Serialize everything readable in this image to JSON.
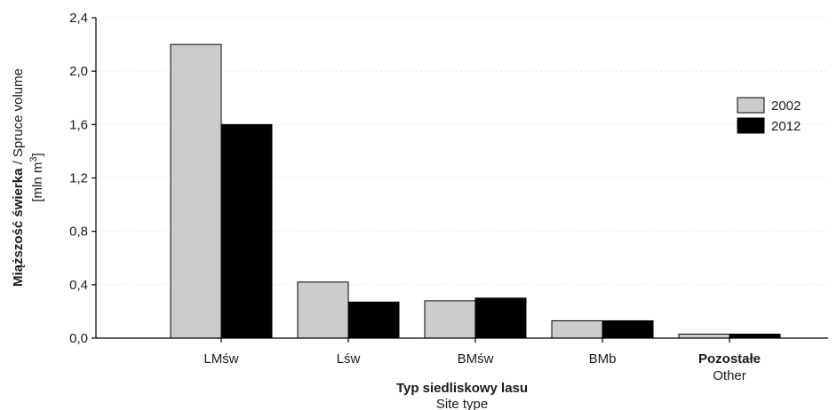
{
  "chart_data": {
    "type": "bar",
    "categories": [
      "LMśw",
      "Lśw",
      "BMśw",
      "BMb",
      "Pozostałe"
    ],
    "category_sublabels": [
      "",
      "",
      "",
      "",
      "Other"
    ],
    "series": [
      {
        "name": "2002",
        "values": [
          2.2,
          0.42,
          0.28,
          0.13,
          0.03
        ],
        "color": "#cccccc"
      },
      {
        "name": "2012",
        "values": [
          1.6,
          0.27,
          0.3,
          0.13,
          0.03
        ],
        "color": "#000000"
      }
    ],
    "ylim": [
      0,
      2.4
    ],
    "yticks": [
      "0,0",
      "0,4",
      "0,8",
      "1,2",
      "1,6",
      "2,0",
      "2,4"
    ],
    "ylabel_bold": "Miąższość świerka",
    "ylabel_rest": " / Spruce volume",
    "yunit_prefix": "[mln m",
    "yunit_sup": "3",
    "yunit_suffix": "]",
    "xlabel": "Typ siedliskowy lasu",
    "xlabel_sub": "Site type",
    "legend_position": "right",
    "grid": true
  }
}
